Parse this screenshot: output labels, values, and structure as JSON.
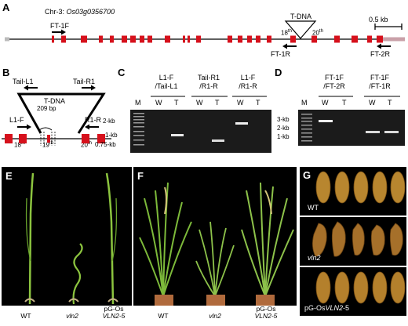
{
  "panelA": {
    "letter": "A",
    "chr_prefix": "Chr-3: ",
    "gene_id": "Os03g0356700",
    "tdna_label": "T-DNA",
    "scale_label": "0.5 kb",
    "primers": {
      "ft1f": "FT-1F",
      "ft1r": "FT-1R",
      "ft2r": "FT-2R"
    },
    "exon18": "18",
    "exon20": "20",
    "ord": "th"
  },
  "panelB": {
    "letter": "B",
    "tail_l1": "Tail-L1",
    "tail_r1": "Tail-R1",
    "tdna_label": "T-DNA",
    "l1f": "L1-F",
    "r1r": "R1-R",
    "bp_label": "209 bp",
    "exon18": "18",
    "exon19": "19",
    "exon20": "20",
    "ord": "th"
  },
  "panelC": {
    "letter": "C",
    "primer_sets": [
      {
        "line1": "L1-F",
        "line2": "/Tail-L1"
      },
      {
        "line1": "Tail-R1",
        "line2": "/R1-R"
      },
      {
        "line1": "L1-F",
        "line2": "/R1-R"
      }
    ],
    "marker": "M",
    "lane_w": "W",
    "lane_t": "T",
    "sizes": [
      "2-kb",
      "1-kb",
      "0.75-kb"
    ]
  },
  "panelD": {
    "letter": "D",
    "primer_sets": [
      {
        "line1": "FT-1F",
        "line2": "/FT-2R"
      },
      {
        "line1": "FT-1F",
        "line2": "/FT-1R"
      }
    ],
    "marker": "M",
    "lane_w": "W",
    "lane_t": "T",
    "sizes": [
      "3-kb",
      "2-kb",
      "1-kb"
    ]
  },
  "panelE": {
    "letter": "E",
    "labels": {
      "wt": "WT",
      "vln2": "vln2",
      "comp1": "pG-Os",
      "comp2": "VLN2-5"
    }
  },
  "panelF": {
    "letter": "F",
    "labels": {
      "wt": "WT",
      "vln2": "vln2",
      "comp1": "pG-Os",
      "comp2": "VLN2-5"
    }
  },
  "panelG": {
    "letter": "G",
    "row_labels": {
      "wt": "WT",
      "vln2": "vln2",
      "comp_prefix": "pG-Os",
      "comp_gene": "VLN2",
      "comp_suffix": "-5"
    }
  },
  "colors": {
    "exon": "#d6111c",
    "grain_wt": "#b8862f",
    "grain_vln2": "#a6702a",
    "leaf": "#7dba3a"
  }
}
